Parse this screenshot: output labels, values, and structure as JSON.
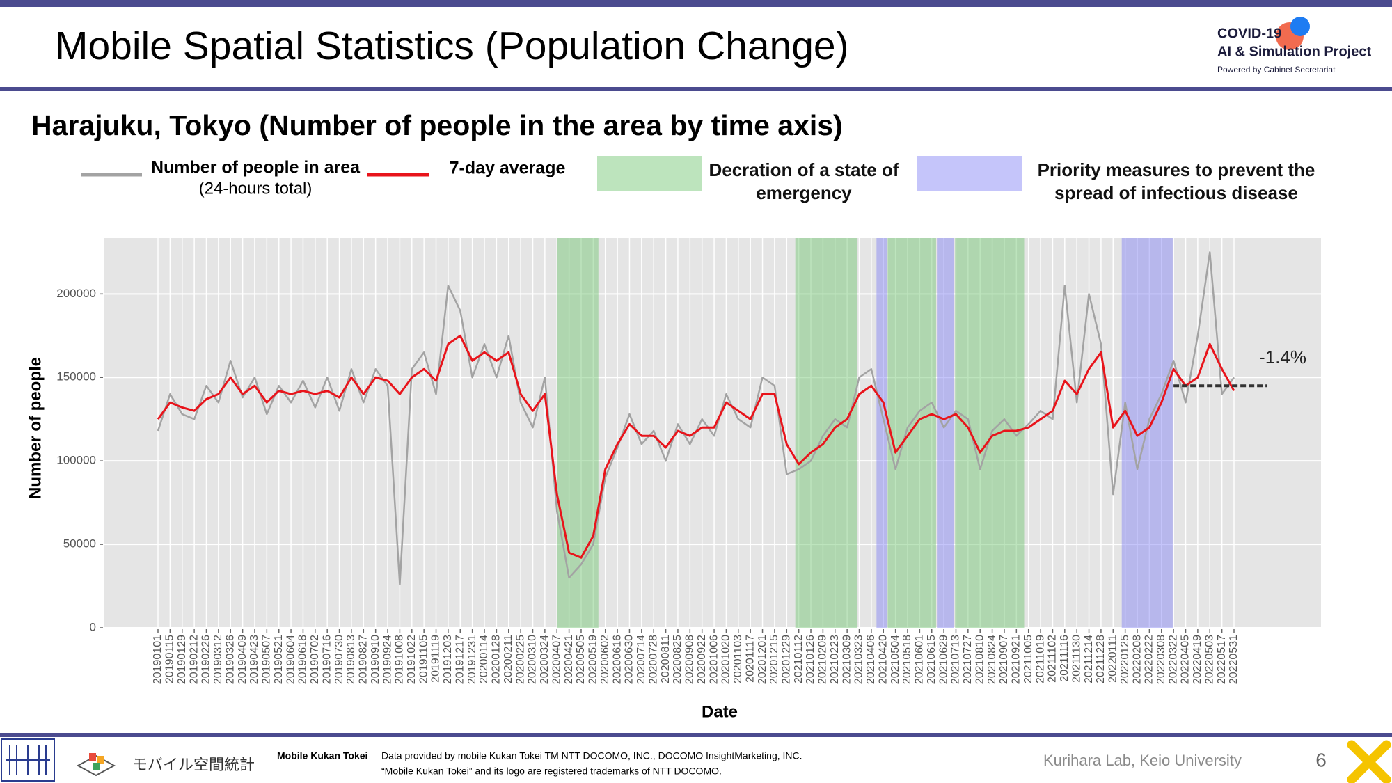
{
  "slide": {
    "title": "Mobile Spatial Statistics (Population Change)",
    "logo": {
      "line1": "COVID-19",
      "line2": "AI & Simulation Project",
      "line3": "Powered by Cabinet Secretariat"
    },
    "footer": {
      "brand_jp": "モバイル空間統計",
      "brand": "Mobile Kukan Tokei",
      "credit1": "Data provided by mobile Kukan Tokei TM NTT DOCOMO, INC., DOCOMO InsightMarketing, INC.",
      "credit2": "“Mobile Kukan Tokei” and its logo are registered trademarks of NTT DOCOMO.",
      "lab": "Kurihara Lab, Keio University",
      "page": "6"
    }
  },
  "chart_data": {
    "type": "line",
    "title": "Harajuku, Tokyo (Number of people in the area by time axis)",
    "x_label": "Date",
    "y_label": "Number of people",
    "categories": [
      "20190101",
      "20190115",
      "20190129",
      "20190212",
      "20190226",
      "20190312",
      "20190326",
      "20190409",
      "20190423",
      "20190507",
      "20190521",
      "20190604",
      "20190618",
      "20190702",
      "20190716",
      "20190730",
      "20190813",
      "20190827",
      "20190910",
      "20190924",
      "20191008",
      "20191022",
      "20191105",
      "20191119",
      "20191203",
      "20191217",
      "20191231",
      "20200114",
      "20200128",
      "20200211",
      "20200225",
      "20200310",
      "20200324",
      "20200407",
      "20200421",
      "20200505",
      "20200519",
      "20200602",
      "20200616",
      "20200630",
      "20200714",
      "20200728",
      "20200811",
      "20200825",
      "20200908",
      "20200922",
      "20201006",
      "20201020",
      "20201103",
      "20201117",
      "20201201",
      "20201215",
      "20201229",
      "20210112",
      "20210126",
      "20210209",
      "20210223",
      "20210309",
      "20210323",
      "20210406",
      "20210420",
      "20210504",
      "20210518",
      "20210601",
      "20210615",
      "20210629",
      "20210713",
      "20210727",
      "20210810",
      "20210824",
      "20210907",
      "20210921",
      "20211005",
      "20211019",
      "20211102",
      "20211116",
      "20211130",
      "20211214",
      "20211228",
      "20220111",
      "20220125",
      "20220208",
      "20220222",
      "20220308",
      "20220322",
      "20220405",
      "20220419",
      "20220503",
      "20220517",
      "20220531"
    ],
    "series": [
      {
        "name": "Number of people in area",
        "name_note": "(24-hours total)",
        "color": "#a3a3a3",
        "values": [
          118000,
          140000,
          128000,
          125000,
          145000,
          135000,
          160000,
          138000,
          150000,
          128000,
          145000,
          135000,
          148000,
          132000,
          150000,
          130000,
          155000,
          135000,
          155000,
          145000,
          26000,
          155000,
          165000,
          140000,
          205000,
          190000,
          150000,
          170000,
          150000,
          175000,
          135000,
          120000,
          150000,
          70000,
          30000,
          38000,
          50000,
          90000,
          108000,
          128000,
          110000,
          118000,
          100000,
          122000,
          110000,
          125000,
          115000,
          140000,
          125000,
          120000,
          150000,
          145000,
          92000,
          95000,
          100000,
          115000,
          125000,
          120000,
          150000,
          155000,
          125000,
          95000,
          120000,
          130000,
          135000,
          120000,
          130000,
          125000,
          95000,
          118000,
          125000,
          115000,
          122000,
          130000,
          125000,
          205000,
          135000,
          200000,
          170000,
          80000,
          135000,
          95000,
          125000,
          140000,
          160000,
          135000,
          175000,
          225000,
          140000,
          150000
        ]
      },
      {
        "name": "7-day average",
        "color": "#e8141b",
        "values": [
          125000,
          135000,
          132000,
          130000,
          137000,
          140000,
          150000,
          140000,
          145000,
          135000,
          142000,
          140000,
          142000,
          140000,
          142000,
          138000,
          150000,
          140000,
          150000,
          148000,
          140000,
          150000,
          155000,
          148000,
          170000,
          175000,
          160000,
          165000,
          160000,
          165000,
          140000,
          130000,
          140000,
          80000,
          45000,
          42000,
          55000,
          95000,
          110000,
          122000,
          115000,
          115000,
          108000,
          118000,
          115000,
          120000,
          120000,
          135000,
          130000,
          125000,
          140000,
          140000,
          110000,
          98000,
          105000,
          110000,
          120000,
          125000,
          140000,
          145000,
          135000,
          105000,
          115000,
          125000,
          128000,
          125000,
          128000,
          120000,
          105000,
          115000,
          118000,
          118000,
          120000,
          125000,
          130000,
          148000,
          140000,
          155000,
          165000,
          120000,
          130000,
          115000,
          120000,
          135000,
          155000,
          145000,
          150000,
          170000,
          155000,
          142000
        ]
      }
    ],
    "spans": [
      {
        "name": "Decration of a state of emergency",
        "color": "#6cc46c",
        "ranges": [
          [
            "20200407",
            "20200525"
          ],
          [
            "20210108",
            "20210321"
          ],
          [
            "20210425",
            "20210620"
          ],
          [
            "20210712",
            "20210930"
          ]
        ]
      },
      {
        "name": "Priority measures to prevent the spread of infectious disease",
        "color": "#7f7ff5",
        "ranges": [
          [
            "20210412",
            "20210424"
          ],
          [
            "20210621",
            "20210711"
          ],
          [
            "20220121",
            "20220321"
          ]
        ]
      }
    ],
    "annotation": {
      "text": "-1.4%",
      "reference_value": 145000,
      "from": "20220322"
    },
    "ylim": [
      0,
      233500
    ],
    "yticks": [
      0,
      50000,
      100000,
      150000,
      200000
    ],
    "grid": true
  }
}
